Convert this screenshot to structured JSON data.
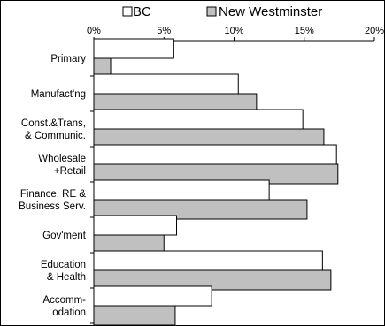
{
  "chart_data": {
    "type": "bar",
    "orientation": "horizontal",
    "categories": [
      [
        "Primary"
      ],
      [
        "Manufact'ng"
      ],
      [
        "Const.&Trans,",
        "& Communic."
      ],
      [
        "Wholesale",
        "+Retail"
      ],
      [
        "Finance, RE &",
        "Business Serv."
      ],
      [
        "Gov'ment"
      ],
      [
        "Education",
        "& Health"
      ],
      [
        "Accomm-",
        "odation"
      ]
    ],
    "series": [
      {
        "name": "BC",
        "color": "#ffffff",
        "values": [
          5.7,
          10.3,
          14.9,
          17.3,
          12.5,
          5.9,
          16.3,
          8.4
        ]
      },
      {
        "name": "New Westminster",
        "color": "#c0c0c0",
        "values": [
          1.2,
          11.6,
          16.4,
          17.4,
          15.2,
          5.0,
          16.9,
          5.8
        ]
      }
    ],
    "ticks": [
      "0%",
      "5%",
      "10%",
      "15%",
      "20%"
    ],
    "xlim": [
      0,
      20
    ],
    "legend_position": "top",
    "grid": false
  }
}
